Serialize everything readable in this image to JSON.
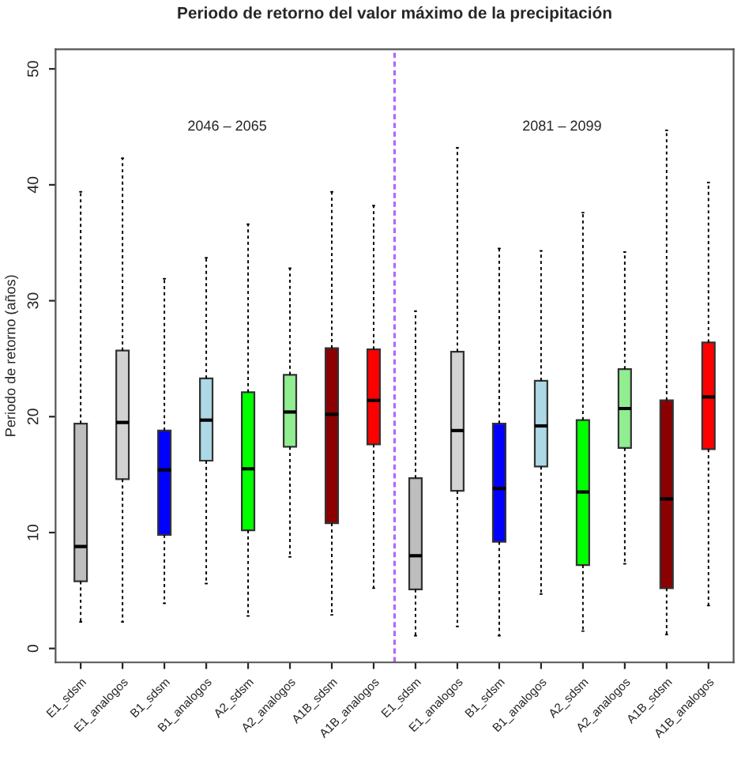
{
  "chart_data": {
    "type": "box",
    "title": "Periodo de retorno del valor máximo de la precipitación",
    "ylabel": "Periodo de retorno (años)",
    "categories": [
      "E1_sdsm",
      "E1_analogos",
      "B1_sdsm",
      "B1_analogos",
      "A2_sdsm",
      "A2_analogos",
      "A1B_sdsm",
      "A1B_analogos",
      "E1_sdsm",
      "E1_analogos",
      "B1_sdsm",
      "B1_analogos",
      "A2_sdsm",
      "A2_analogos",
      "A1B_sdsm",
      "A1B_analogos"
    ],
    "colors": [
      "#bebebe",
      "#d3d3d3",
      "#0000ff",
      "#add8e6",
      "#00ff00",
      "#90ee90",
      "#8b0000",
      "#ff0000",
      "#bebebe",
      "#d3d3d3",
      "#0000ff",
      "#add8e6",
      "#00ff00",
      "#90ee90",
      "#8b0000",
      "#ff0000"
    ],
    "boxes": [
      {
        "low": 2.3,
        "q1": 5.8,
        "median": 8.8,
        "q3": 19.4,
        "high": 39.4
      },
      {
        "low": 2.3,
        "q1": 14.6,
        "median": 19.5,
        "q3": 25.7,
        "high": 42.3
      },
      {
        "low": 3.9,
        "q1": 9.8,
        "median": 15.4,
        "q3": 18.8,
        "high": 31.9
      },
      {
        "low": 5.6,
        "q1": 16.2,
        "median": 19.7,
        "q3": 23.3,
        "high": 33.7
      },
      {
        "low": 2.8,
        "q1": 10.2,
        "median": 15.5,
        "q3": 22.1,
        "high": 36.6
      },
      {
        "low": 7.9,
        "q1": 17.4,
        "median": 20.4,
        "q3": 23.6,
        "high": 32.8
      },
      {
        "low": 2.9,
        "q1": 10.8,
        "median": 20.2,
        "q3": 25.9,
        "high": 39.4
      },
      {
        "low": 5.2,
        "q1": 17.6,
        "median": 21.4,
        "q3": 25.8,
        "high": 38.2
      },
      {
        "low": 1.1,
        "q1": 5.1,
        "median": 8.0,
        "q3": 14.7,
        "high": 29.1
      },
      {
        "low": 1.9,
        "q1": 13.6,
        "median": 18.8,
        "q3": 25.6,
        "high": 43.2
      },
      {
        "low": 1.1,
        "q1": 9.2,
        "median": 13.8,
        "q3": 19.4,
        "high": 34.5
      },
      {
        "low": 4.7,
        "q1": 15.7,
        "median": 19.2,
        "q3": 23.1,
        "high": 34.3
      },
      {
        "low": 1.5,
        "q1": 7.2,
        "median": 13.5,
        "q3": 19.7,
        "high": 37.6
      },
      {
        "low": 7.3,
        "q1": 17.3,
        "median": 20.7,
        "q3": 24.1,
        "high": 34.2
      },
      {
        "low": 1.2,
        "q1": 5.2,
        "median": 12.9,
        "q3": 21.4,
        "high": 44.7
      },
      {
        "low": 3.7,
        "q1": 17.2,
        "median": 21.7,
        "q3": 26.4,
        "high": 40.2
      }
    ],
    "ylim": [
      -1.2,
      51.7
    ],
    "yticks": [
      0,
      10,
      20,
      30,
      40,
      50
    ],
    "annotations": [
      "2046 – 2065",
      "2081 – 2099"
    ],
    "grid": false,
    "legend": false
  }
}
